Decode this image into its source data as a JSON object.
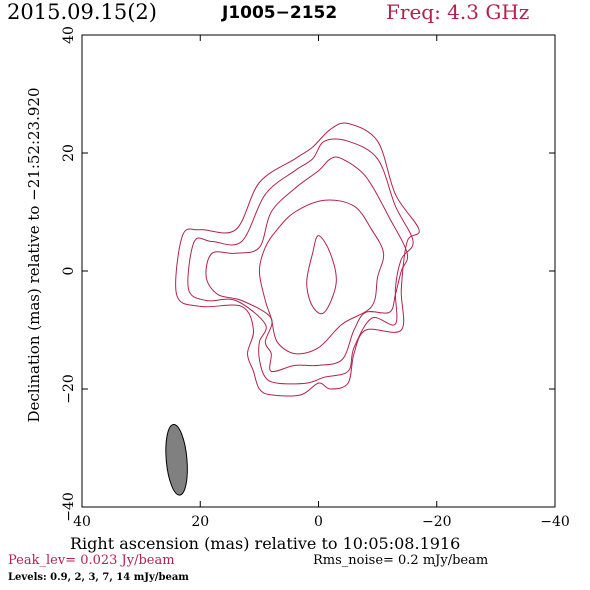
{
  "header": {
    "date": "2015.09.15(2)",
    "source": "J1005−2152",
    "freq": "Freq: 4.3 GHz",
    "freq_color": "#b0244c"
  },
  "chart_data": {
    "type": "contour",
    "xlabel": "Right ascension (mas) relative to 10:05:08.1916",
    "ylabel": "Declination (mas) relative to −21:52:23.920",
    "xlim": [
      40,
      -40
    ],
    "ylim": [
      -40,
      40
    ],
    "x_ticks": [
      40,
      20,
      0,
      -20,
      -40
    ],
    "y_ticks": [
      -40,
      -20,
      0,
      20,
      40
    ],
    "x_tick_labels": [
      "40",
      "20",
      "0",
      "−20",
      "−40"
    ],
    "y_tick_labels": [
      "−40",
      "−20",
      "0",
      "20",
      "40"
    ],
    "contour_color": "#b0244c",
    "levels_mJy_per_beam": [
      0.9,
      2,
      3,
      7,
      14
    ],
    "contours": [
      {
        "level": 0.9,
        "points": [
          [
            -5,
            25
          ],
          [
            -10,
            22
          ],
          [
            -13,
            13
          ],
          [
            -17,
            7
          ],
          [
            -15,
            5
          ],
          [
            -14,
            -3
          ],
          [
            -14,
            -10
          ],
          [
            -8,
            -10
          ],
          [
            -6,
            -14
          ],
          [
            -5,
            -19
          ],
          [
            -2,
            -20
          ],
          [
            0,
            -19
          ],
          [
            3,
            -21
          ],
          [
            8,
            -21
          ],
          [
            10,
            -20
          ],
          [
            11,
            -17
          ],
          [
            12,
            -14
          ],
          [
            11,
            -10
          ],
          [
            13,
            -6
          ],
          [
            20,
            -6
          ],
          [
            24,
            -4
          ],
          [
            23,
            6
          ],
          [
            20,
            7
          ],
          [
            14,
            7
          ],
          [
            10,
            15
          ],
          [
            4,
            19
          ],
          [
            1,
            21
          ],
          [
            -2,
            24
          ]
        ]
      },
      {
        "level": 2,
        "points": [
          [
            -5,
            22
          ],
          [
            -10,
            19
          ],
          [
            -13,
            11
          ],
          [
            -16,
            5
          ],
          [
            -14,
            2
          ],
          [
            -13,
            -3
          ],
          [
            -13,
            -9
          ],
          [
            -9,
            -8
          ],
          [
            -6,
            -13
          ],
          [
            -5,
            -17
          ],
          [
            -1,
            -18
          ],
          [
            2,
            -19
          ],
          [
            7,
            -19
          ],
          [
            9,
            -18
          ],
          [
            10,
            -15
          ],
          [
            10,
            -12
          ],
          [
            9,
            -9
          ],
          [
            14,
            -5
          ],
          [
            19,
            -5
          ],
          [
            22,
            -3
          ],
          [
            21,
            5
          ],
          [
            18,
            5
          ],
          [
            13,
            5
          ],
          [
            9,
            13
          ],
          [
            4,
            17
          ],
          [
            1,
            19
          ],
          [
            -1,
            22
          ]
        ]
      },
      {
        "level": 3,
        "points": [
          [
            -4,
            19
          ],
          [
            -8,
            16
          ],
          [
            -12,
            9
          ],
          [
            -15,
            3
          ],
          [
            -14,
            0
          ],
          [
            -13,
            -4
          ],
          [
            -12,
            -7
          ],
          [
            -8,
            -7
          ],
          [
            -6,
            -10
          ],
          [
            -4,
            -15
          ],
          [
            0,
            -16
          ],
          [
            4,
            -16
          ],
          [
            8,
            -17
          ],
          [
            8,
            -14
          ],
          [
            9,
            -12
          ],
          [
            8,
            -8
          ],
          [
            13,
            -5
          ],
          [
            17,
            -4
          ],
          [
            19,
            -1
          ],
          [
            18,
            3
          ],
          [
            14,
            3
          ],
          [
            10,
            4
          ],
          [
            8,
            10
          ],
          [
            4,
            14
          ],
          [
            0,
            17
          ],
          [
            -2,
            19
          ]
        ]
      },
      {
        "level": 7,
        "points": [
          [
            -1,
            12
          ],
          [
            -6,
            11
          ],
          [
            -9,
            7
          ],
          [
            -11,
            3
          ],
          [
            -10,
            -1
          ],
          [
            -9,
            -6
          ],
          [
            -4,
            -9
          ],
          [
            0,
            -13
          ],
          [
            4,
            -14
          ],
          [
            7,
            -12
          ],
          [
            8,
            -8
          ],
          [
            9,
            -5
          ],
          [
            10,
            0
          ],
          [
            9,
            4
          ],
          [
            7,
            7
          ],
          [
            4,
            10
          ]
        ]
      },
      {
        "level": 14,
        "points": [
          [
            0,
            6
          ],
          [
            -2,
            3
          ],
          [
            -3,
            -2
          ],
          [
            -1,
            -7
          ],
          [
            1,
            -6
          ],
          [
            2,
            -2
          ],
          [
            1,
            3
          ]
        ]
      }
    ],
    "beam": {
      "x": 24,
      "y": -32,
      "bmaj": 12,
      "bmin": 3.5,
      "pa": -5
    }
  },
  "footer": {
    "peak": "Peak_lev=  0.023 Jy/beam",
    "rms": "Rms_noise=  0.2 mJy/beam",
    "levels": "Levels: 0.9,   2,   3,   7,   14 mJy/beam"
  }
}
